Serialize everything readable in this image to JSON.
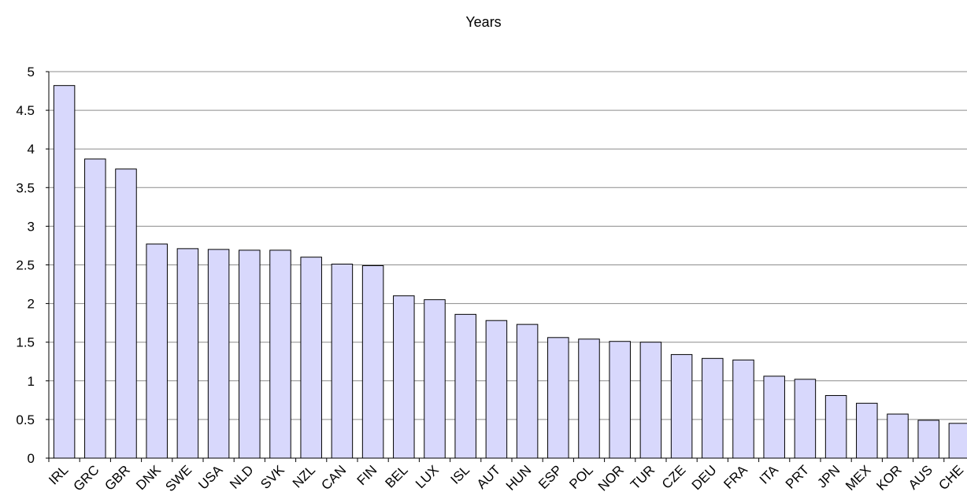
{
  "chart_data": {
    "type": "bar",
    "title": "Years",
    "categories": [
      "IRL",
      "GRC",
      "GBR",
      "DNK",
      "SWE",
      "USA",
      "NLD",
      "SVK",
      "NZL",
      "CAN",
      "FIN",
      "BEL",
      "LUX",
      "ISL",
      "AUT",
      "HUN",
      "ESP",
      "POL",
      "NOR",
      "TUR",
      "CZE",
      "DEU",
      "FRA",
      "ITA",
      "PRT",
      "JPN",
      "MEX",
      "KOR",
      "AUS",
      "CHE"
    ],
    "values": [
      4.82,
      3.87,
      3.74,
      2.77,
      2.71,
      2.7,
      2.69,
      2.69,
      2.6,
      2.51,
      2.49,
      2.1,
      2.05,
      1.86,
      1.78,
      1.73,
      1.56,
      1.54,
      1.51,
      1.5,
      1.34,
      1.29,
      1.27,
      1.06,
      1.02,
      0.81,
      0.71,
      0.57,
      0.49,
      0.45
    ],
    "yticks": [
      "0",
      "0.5",
      "1",
      "1.5",
      "2",
      "2.5",
      "3",
      "3.5",
      "4",
      "4.5",
      "5"
    ],
    "ylim": [
      0,
      5
    ],
    "grid": true,
    "bar_color": "#d8d8fc",
    "bar_edge_color": "#000000"
  }
}
